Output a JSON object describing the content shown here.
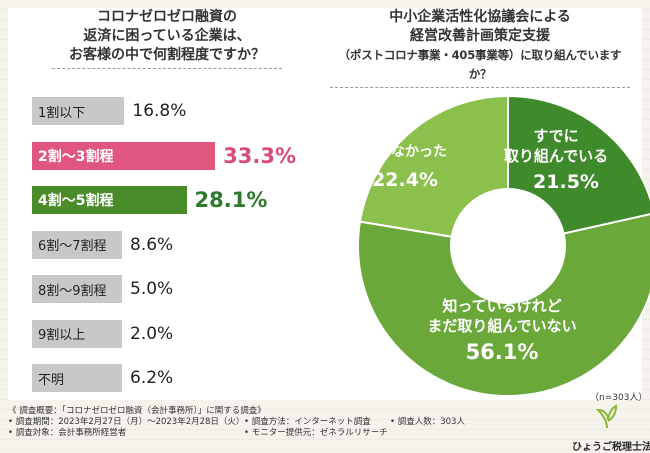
{
  "left_chart": {
    "title_lines": [
      "コロナゼロゼロ融資の",
      "返済に困っている企業は、",
      "お客様の中で何割程度ですか？"
    ]
  },
  "right_chart": {
    "title_lines": [
      "中小企業活性化協議会による",
      "経営改善計画策定支援",
      "（ポストコロナ事業・405事業等）に取り組んでいますか？"
    ]
  },
  "colors": {
    "gray": "#c8c8c8",
    "pink": "#e0567f",
    "green": "#4a8c2a",
    "pie_dark": "#3f8a2a",
    "pie_mid": "#6aa83a",
    "pie_light": "#8cc04d"
  },
  "chart_data": [
    {
      "type": "bar",
      "orientation": "horizontal",
      "title": "コロナゼロゼロ融資の 返済に困っている企業は、 お客様の中で何割程度ですか？",
      "categories": [
        "1割以下",
        "2割〜3割程",
        "4割〜5割程",
        "6割〜7割程",
        "8割〜9割程",
        "9割以上",
        "不明"
      ],
      "values": [
        16.8,
        33.3,
        28.1,
        8.6,
        5.0,
        2.0,
        6.2
      ],
      "value_labels": [
        "16.8%",
        "33.3%",
        "28.1%",
        "8.6%",
        "5.0%",
        "2.0%",
        "6.2%"
      ],
      "highlight": [
        false,
        true,
        true,
        false,
        false,
        false,
        false
      ],
      "unit": "%"
    },
    {
      "type": "pie",
      "title": "中小企業活性化協議会による経営改善計画策定支援（ポストコロナ事業・405事業等）に取り組んでいますか？",
      "slices": [
        {
          "label_lines": [
            "すでに",
            "取り組んでいる"
          ],
          "value": 21.5,
          "value_label": "21.5%"
        },
        {
          "label_lines": [
            "知っているけれど",
            "まだ取り組んでいない"
          ],
          "value": 56.1,
          "value_label": "56.1%"
        },
        {
          "label_lines": [
            "知らなかった"
          ],
          "value": 22.4,
          "value_label": "22.4%"
        }
      ],
      "sample_note": "（n=303人）"
    }
  ],
  "footer": {
    "line1": "《 調査概要：「コロナゼロゼロ融資（会計事務所）」に関する調査》",
    "period": "• 調査期間：2023年2月27日（月）〜2023年2月28日（火）",
    "target": "• 調査対象：会計事務所経営者",
    "method": "• 調査方法：インターネット調査",
    "provider": "• モニター提供元：ゼネラルリサーチ",
    "count": "• 調査人数：303人",
    "brand": "ひょうご税理士法人"
  }
}
